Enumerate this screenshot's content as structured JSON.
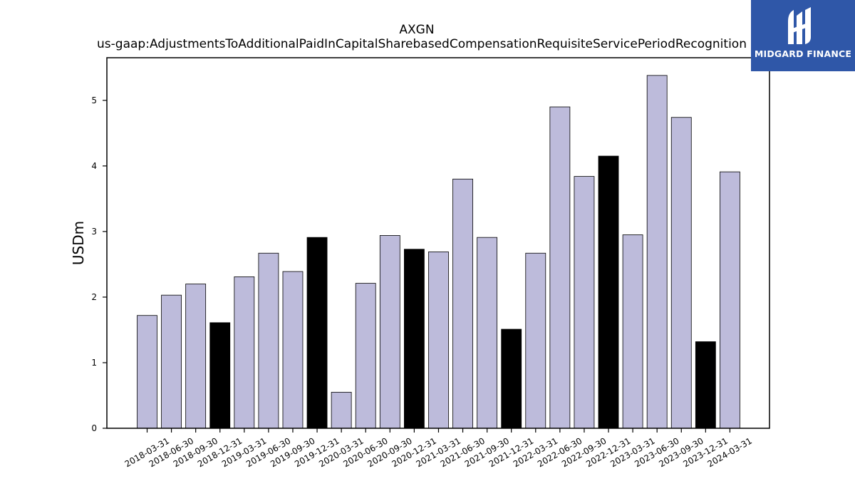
{
  "chart_data": {
    "type": "bar",
    "title": "AXGN",
    "subtitle": "us-gaap:AdjustmentsToAdditionalPaidInCapitalSharebasedCompensationRequisiteServicePeriodRecognition",
    "xlabel": "",
    "ylabel": "USDm",
    "ylim": [
      0,
      5.65
    ],
    "yticks": [
      0,
      1,
      2,
      3,
      4,
      5
    ],
    "grid": false,
    "categories": [
      "2018-03-31",
      "2018-06-30",
      "2018-09-30",
      "2018-12-31",
      "2019-03-31",
      "2019-06-30",
      "2019-09-30",
      "2019-12-31",
      "2020-03-31",
      "2020-06-30",
      "2020-09-30",
      "2020-12-31",
      "2021-03-31",
      "2021-06-30",
      "2021-09-30",
      "2021-12-31",
      "2022-03-31",
      "2022-06-30",
      "2022-09-30",
      "2022-12-31",
      "2023-03-31",
      "2023-06-30",
      "2023-09-30",
      "2023-12-31",
      "2024-03-31"
    ],
    "values": [
      1.72,
      2.03,
      2.2,
      1.61,
      2.31,
      2.67,
      2.39,
      2.91,
      0.55,
      2.21,
      2.94,
      2.73,
      2.69,
      3.8,
      2.91,
      1.51,
      2.67,
      4.9,
      3.84,
      4.15,
      2.95,
      5.38,
      4.74,
      1.32,
      3.91
    ],
    "highlighted": [
      false,
      false,
      false,
      true,
      false,
      false,
      false,
      true,
      false,
      false,
      false,
      true,
      false,
      false,
      false,
      true,
      false,
      false,
      false,
      true,
      false,
      false,
      false,
      true,
      false
    ],
    "colors": {
      "bar": "#bdbbdb",
      "highlight": "#000000",
      "edge": "#000000"
    }
  },
  "logo": {
    "text": "MIDGARD FINANCE",
    "background": "#2f57a8"
  }
}
